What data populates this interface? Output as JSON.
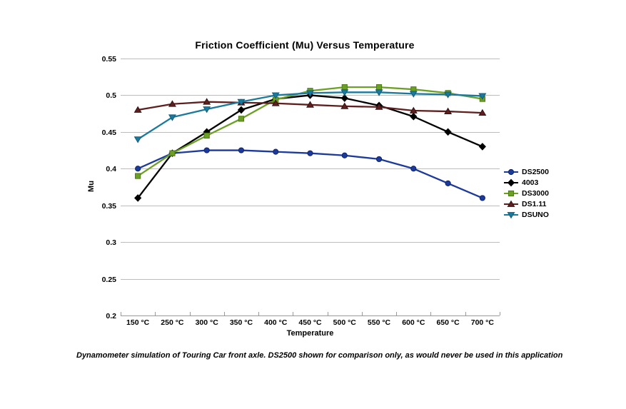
{
  "title": "Friction Coefficient (Mu) Versus Temperature",
  "caption": "Dynamometer simulation of Touring Car front axle. DS2500 shown for comparison only, as would never be used in this application",
  "colors": {
    "background": "#ffffff",
    "gridline": "#bcbcbc",
    "axis_line": "#9a9a9a",
    "text": "#000000"
  },
  "chart_data": {
    "type": "line",
    "title": "Friction Coefficient (Mu) Versus Temperature",
    "xlabel": "Temperature",
    "ylabel": "Mu",
    "ylim": [
      0.2,
      0.55
    ],
    "ytick_step": 0.05,
    "ytick_labels": [
      "0.55",
      "0.5",
      "0.45",
      "0.4",
      "0.35",
      "0.3",
      "0.25",
      "0.2"
    ],
    "grid": true,
    "legend_position": "right",
    "categories": [
      "150 °C",
      "250 °C",
      "300 °C",
      "350 °C",
      "400 °C",
      "450 °C",
      "500 °C",
      "550 °C",
      "600 °C",
      "650 °C",
      "700 °C"
    ],
    "series": [
      {
        "name": "DS2500",
        "marker": "circle",
        "color": "#1c3a9c",
        "edge_color": "#0e2566",
        "values": [
          0.4,
          0.421,
          0.425,
          0.425,
          0.423,
          0.421,
          0.418,
          0.413,
          0.4,
          0.38,
          0.36
        ]
      },
      {
        "name": "4003",
        "marker": "diamond",
        "color": "#000000",
        "edge_color": "#000000",
        "values": [
          0.36,
          0.421,
          0.45,
          0.48,
          0.495,
          0.5,
          0.496,
          0.486,
          0.471,
          0.45,
          0.43
        ]
      },
      {
        "name": "DS3000",
        "marker": "square",
        "color": "#6ca024",
        "edge_color": "#4e7a14",
        "values": [
          0.39,
          0.421,
          0.445,
          0.468,
          0.494,
          0.506,
          0.511,
          0.511,
          0.508,
          0.503,
          0.495
        ]
      },
      {
        "name": "DS1.11",
        "marker": "triangle-up",
        "color": "#5e1f1f",
        "edge_color": "#351010",
        "values": [
          0.48,
          0.488,
          0.491,
          0.49,
          0.489,
          0.487,
          0.485,
          0.484,
          0.479,
          0.478,
          0.476
        ]
      },
      {
        "name": "DSUNO",
        "marker": "triangle-down",
        "color": "#1a7a9e",
        "edge_color": "#135d7a",
        "values": [
          0.44,
          0.47,
          0.481,
          0.491,
          0.5,
          0.503,
          0.504,
          0.504,
          0.502,
          0.501,
          0.499
        ]
      }
    ]
  }
}
